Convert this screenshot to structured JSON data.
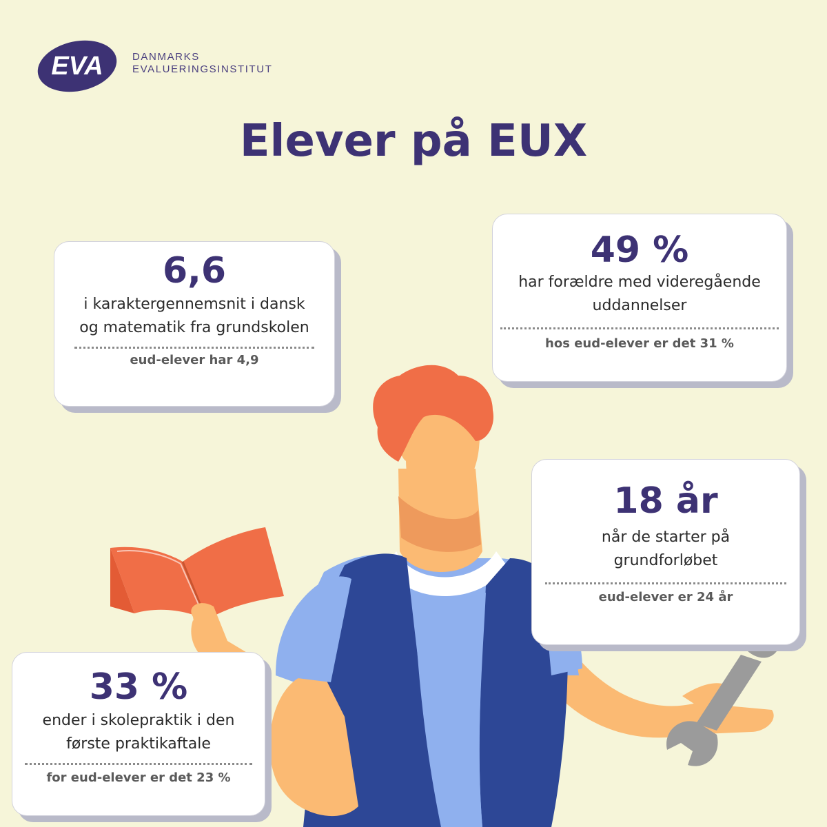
{
  "logo": {
    "mark": "EVA",
    "line1": "DANMARKS",
    "line2": "EVALUERINGSINSTITUT"
  },
  "title": "Elever på EUX",
  "cards": [
    {
      "big": "6,6",
      "desc": [
        "i karaktergennemsnit i dansk",
        "og matematik fra grundskolen"
      ],
      "note": "eud-elever har 4,9"
    },
    {
      "big": "49 %",
      "desc": [
        "har forældre med videregående",
        "uddannelser"
      ],
      "note": "hos eud-elever er det 31 %"
    },
    {
      "big": "18 år",
      "desc": [
        "når de starter på",
        "grundforløbet"
      ],
      "note": "eud-elever er 24 år"
    },
    {
      "big": "33 %",
      "desc": [
        "ender i skolepraktik i den",
        "første praktikaftale"
      ],
      "note": "for eud-elever er det 23 %"
    }
  ],
  "colors": {
    "background": "#f6f5d9",
    "brand_purple": "#3d3274",
    "hair_orange": "#f06e47",
    "skin": "#fbba73",
    "vest_blue": "#2d4796",
    "shirt_blue": "#8fb0ee",
    "wrench_gray": "#9b9b9b"
  },
  "icons": [
    "eva-logo",
    "open-book-icon",
    "wrench-icon",
    "student-illustration"
  ]
}
